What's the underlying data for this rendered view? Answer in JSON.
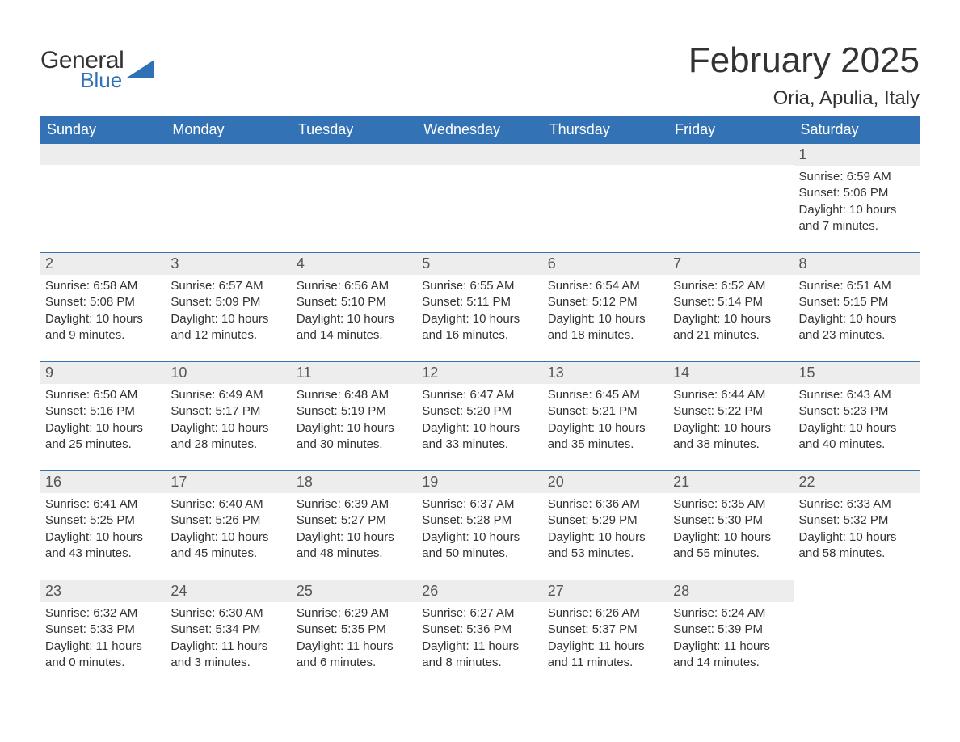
{
  "logo": {
    "word1": "General",
    "word2": "Blue"
  },
  "title": "February 2025",
  "location": "Oria, Apulia, Italy",
  "colors": {
    "header_bg": "#3373b5",
    "header_text": "#ffffff",
    "daynum_bg": "#ededed",
    "text": "#333333",
    "logo_blue": "#2e72b5"
  },
  "weekdays": [
    "Sunday",
    "Monday",
    "Tuesday",
    "Wednesday",
    "Thursday",
    "Friday",
    "Saturday"
  ],
  "weeks": [
    [
      {
        "empty": true
      },
      {
        "empty": true
      },
      {
        "empty": true
      },
      {
        "empty": true
      },
      {
        "empty": true
      },
      {
        "empty": true
      },
      {
        "day": "1",
        "lines": [
          "Sunrise: 6:59 AM",
          "Sunset: 5:06 PM",
          "Daylight: 10 hours and 7 minutes."
        ]
      }
    ],
    [
      {
        "day": "2",
        "lines": [
          "Sunrise: 6:58 AM",
          "Sunset: 5:08 PM",
          "Daylight: 10 hours and 9 minutes."
        ]
      },
      {
        "day": "3",
        "lines": [
          "Sunrise: 6:57 AM",
          "Sunset: 5:09 PM",
          "Daylight: 10 hours and 12 minutes."
        ]
      },
      {
        "day": "4",
        "lines": [
          "Sunrise: 6:56 AM",
          "Sunset: 5:10 PM",
          "Daylight: 10 hours and 14 minutes."
        ]
      },
      {
        "day": "5",
        "lines": [
          "Sunrise: 6:55 AM",
          "Sunset: 5:11 PM",
          "Daylight: 10 hours and 16 minutes."
        ]
      },
      {
        "day": "6",
        "lines": [
          "Sunrise: 6:54 AM",
          "Sunset: 5:12 PM",
          "Daylight: 10 hours and 18 minutes."
        ]
      },
      {
        "day": "7",
        "lines": [
          "Sunrise: 6:52 AM",
          "Sunset: 5:14 PM",
          "Daylight: 10 hours and 21 minutes."
        ]
      },
      {
        "day": "8",
        "lines": [
          "Sunrise: 6:51 AM",
          "Sunset: 5:15 PM",
          "Daylight: 10 hours and 23 minutes."
        ]
      }
    ],
    [
      {
        "day": "9",
        "lines": [
          "Sunrise: 6:50 AM",
          "Sunset: 5:16 PM",
          "Daylight: 10 hours and 25 minutes."
        ]
      },
      {
        "day": "10",
        "lines": [
          "Sunrise: 6:49 AM",
          "Sunset: 5:17 PM",
          "Daylight: 10 hours and 28 minutes."
        ]
      },
      {
        "day": "11",
        "lines": [
          "Sunrise: 6:48 AM",
          "Sunset: 5:19 PM",
          "Daylight: 10 hours and 30 minutes."
        ]
      },
      {
        "day": "12",
        "lines": [
          "Sunrise: 6:47 AM",
          "Sunset: 5:20 PM",
          "Daylight: 10 hours and 33 minutes."
        ]
      },
      {
        "day": "13",
        "lines": [
          "Sunrise: 6:45 AM",
          "Sunset: 5:21 PM",
          "Daylight: 10 hours and 35 minutes."
        ]
      },
      {
        "day": "14",
        "lines": [
          "Sunrise: 6:44 AM",
          "Sunset: 5:22 PM",
          "Daylight: 10 hours and 38 minutes."
        ]
      },
      {
        "day": "15",
        "lines": [
          "Sunrise: 6:43 AM",
          "Sunset: 5:23 PM",
          "Daylight: 10 hours and 40 minutes."
        ]
      }
    ],
    [
      {
        "day": "16",
        "lines": [
          "Sunrise: 6:41 AM",
          "Sunset: 5:25 PM",
          "Daylight: 10 hours and 43 minutes."
        ]
      },
      {
        "day": "17",
        "lines": [
          "Sunrise: 6:40 AM",
          "Sunset: 5:26 PM",
          "Daylight: 10 hours and 45 minutes."
        ]
      },
      {
        "day": "18",
        "lines": [
          "Sunrise: 6:39 AM",
          "Sunset: 5:27 PM",
          "Daylight: 10 hours and 48 minutes."
        ]
      },
      {
        "day": "19",
        "lines": [
          "Sunrise: 6:37 AM",
          "Sunset: 5:28 PM",
          "Daylight: 10 hours and 50 minutes."
        ]
      },
      {
        "day": "20",
        "lines": [
          "Sunrise: 6:36 AM",
          "Sunset: 5:29 PM",
          "Daylight: 10 hours and 53 minutes."
        ]
      },
      {
        "day": "21",
        "lines": [
          "Sunrise: 6:35 AM",
          "Sunset: 5:30 PM",
          "Daylight: 10 hours and 55 minutes."
        ]
      },
      {
        "day": "22",
        "lines": [
          "Sunrise: 6:33 AM",
          "Sunset: 5:32 PM",
          "Daylight: 10 hours and 58 minutes."
        ]
      }
    ],
    [
      {
        "day": "23",
        "lines": [
          "Sunrise: 6:32 AM",
          "Sunset: 5:33 PM",
          "Daylight: 11 hours and 0 minutes."
        ]
      },
      {
        "day": "24",
        "lines": [
          "Sunrise: 6:30 AM",
          "Sunset: 5:34 PM",
          "Daylight: 11 hours and 3 minutes."
        ]
      },
      {
        "day": "25",
        "lines": [
          "Sunrise: 6:29 AM",
          "Sunset: 5:35 PM",
          "Daylight: 11 hours and 6 minutes."
        ]
      },
      {
        "day": "26",
        "lines": [
          "Sunrise: 6:27 AM",
          "Sunset: 5:36 PM",
          "Daylight: 11 hours and 8 minutes."
        ]
      },
      {
        "day": "27",
        "lines": [
          "Sunrise: 6:26 AM",
          "Sunset: 5:37 PM",
          "Daylight: 11 hours and 11 minutes."
        ]
      },
      {
        "day": "28",
        "lines": [
          "Sunrise: 6:24 AM",
          "Sunset: 5:39 PM",
          "Daylight: 11 hours and 14 minutes."
        ]
      },
      {
        "empty": true,
        "noBar": true
      }
    ]
  ]
}
